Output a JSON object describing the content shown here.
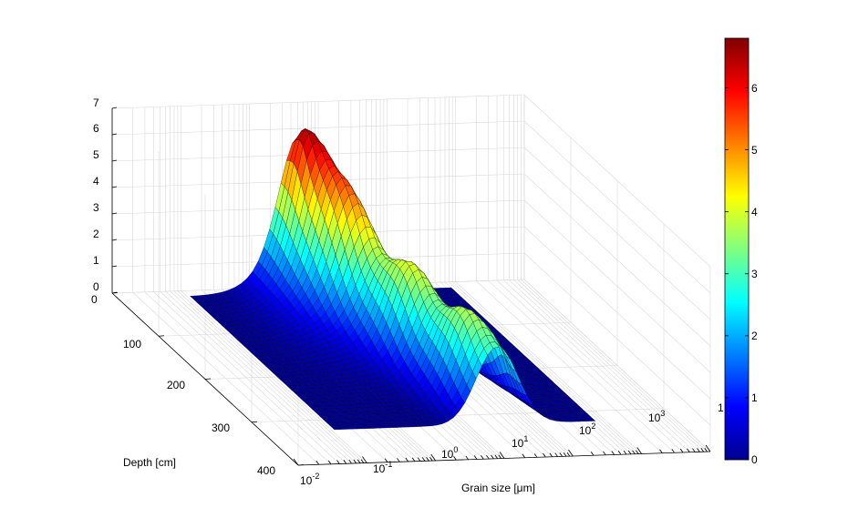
{
  "chart_data": {
    "type": "surface",
    "title": "",
    "xlabel": "Grain size [μm]",
    "ylabel": "Depth [cm]",
    "zlabel": "",
    "x_scale": "log",
    "x_ticks": [
      {
        "base": "10",
        "exp": "-2"
      },
      {
        "base": "10",
        "exp": "-1"
      },
      {
        "base": "10",
        "exp": "0"
      },
      {
        "base": "10",
        "exp": "1"
      },
      {
        "base": "10",
        "exp": "2"
      },
      {
        "base": "10",
        "exp": "3"
      },
      {
        "base": "1",
        "exp": ""
      }
    ],
    "y_ticks": [
      "0",
      "100",
      "200",
      "300",
      "400"
    ],
    "z_ticks": [
      "0",
      "1",
      "2",
      "3",
      "4",
      "5",
      "6",
      "7"
    ],
    "xlim_exp": [
      -2,
      4
    ],
    "ylim": [
      0,
      400
    ],
    "zlim": [
      0,
      7
    ],
    "colormap": "jet",
    "colorbar": {
      "ticks": [
        "0",
        "1",
        "2",
        "3",
        "4",
        "5",
        "6"
      ],
      "range": [
        0,
        6.8
      ],
      "placement": "right"
    },
    "grid": true,
    "peaks_estimated": [
      {
        "grain_size_um": 3.2,
        "depth_cm": 40,
        "value": 4.8
      },
      {
        "grain_size_um": 8,
        "depth_cm": 50,
        "value": 6.8
      },
      {
        "grain_size_um": 25,
        "depth_cm": 180,
        "value": 5.2
      },
      {
        "grain_size_um": 40,
        "depth_cm": 300,
        "value": 3.2
      }
    ]
  }
}
